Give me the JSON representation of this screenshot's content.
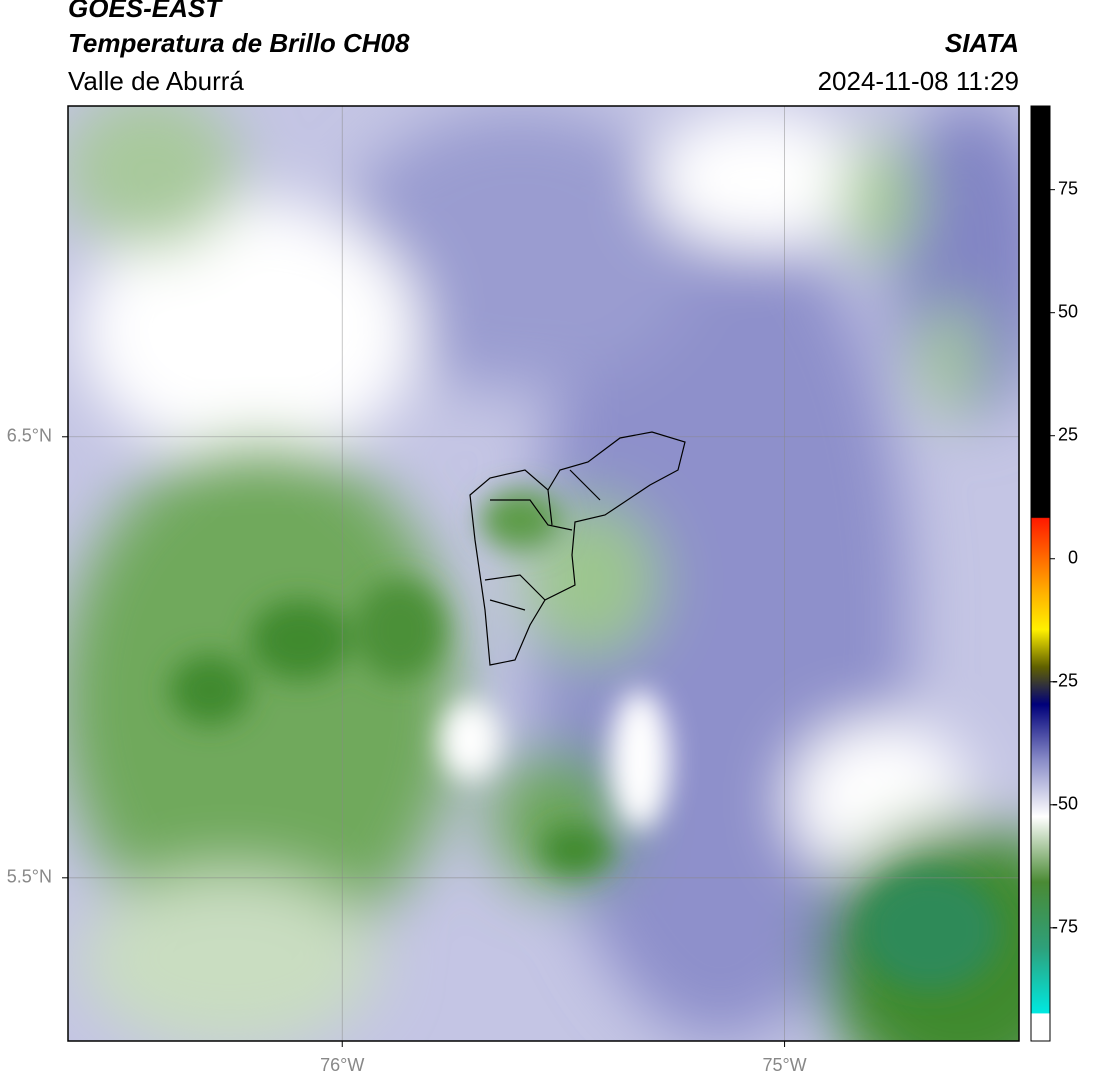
{
  "header": {
    "title": "GOES-EAST",
    "subtitle": "Temperatura de Brillo CH08",
    "region": "Valle de Aburrá",
    "source": "SIATA",
    "datetime": "2024-11-08 11:29"
  },
  "map": {
    "xlim": [
      -76.62,
      -74.47
    ],
    "ylim": [
      5.13,
      7.25
    ],
    "xticks": [
      {
        "value": -76,
        "label": "76°W"
      },
      {
        "value": -75,
        "label": "75°W"
      }
    ],
    "yticks": [
      {
        "value": 6.5,
        "label": "6.5°N"
      },
      {
        "value": 5.5,
        "label": "5.5°N"
      }
    ],
    "grid": true
  },
  "colorbar": {
    "lim": [
      -98,
      92
    ],
    "ticks": [
      75,
      50,
      25,
      0,
      -25,
      -50,
      -75
    ]
  }
}
